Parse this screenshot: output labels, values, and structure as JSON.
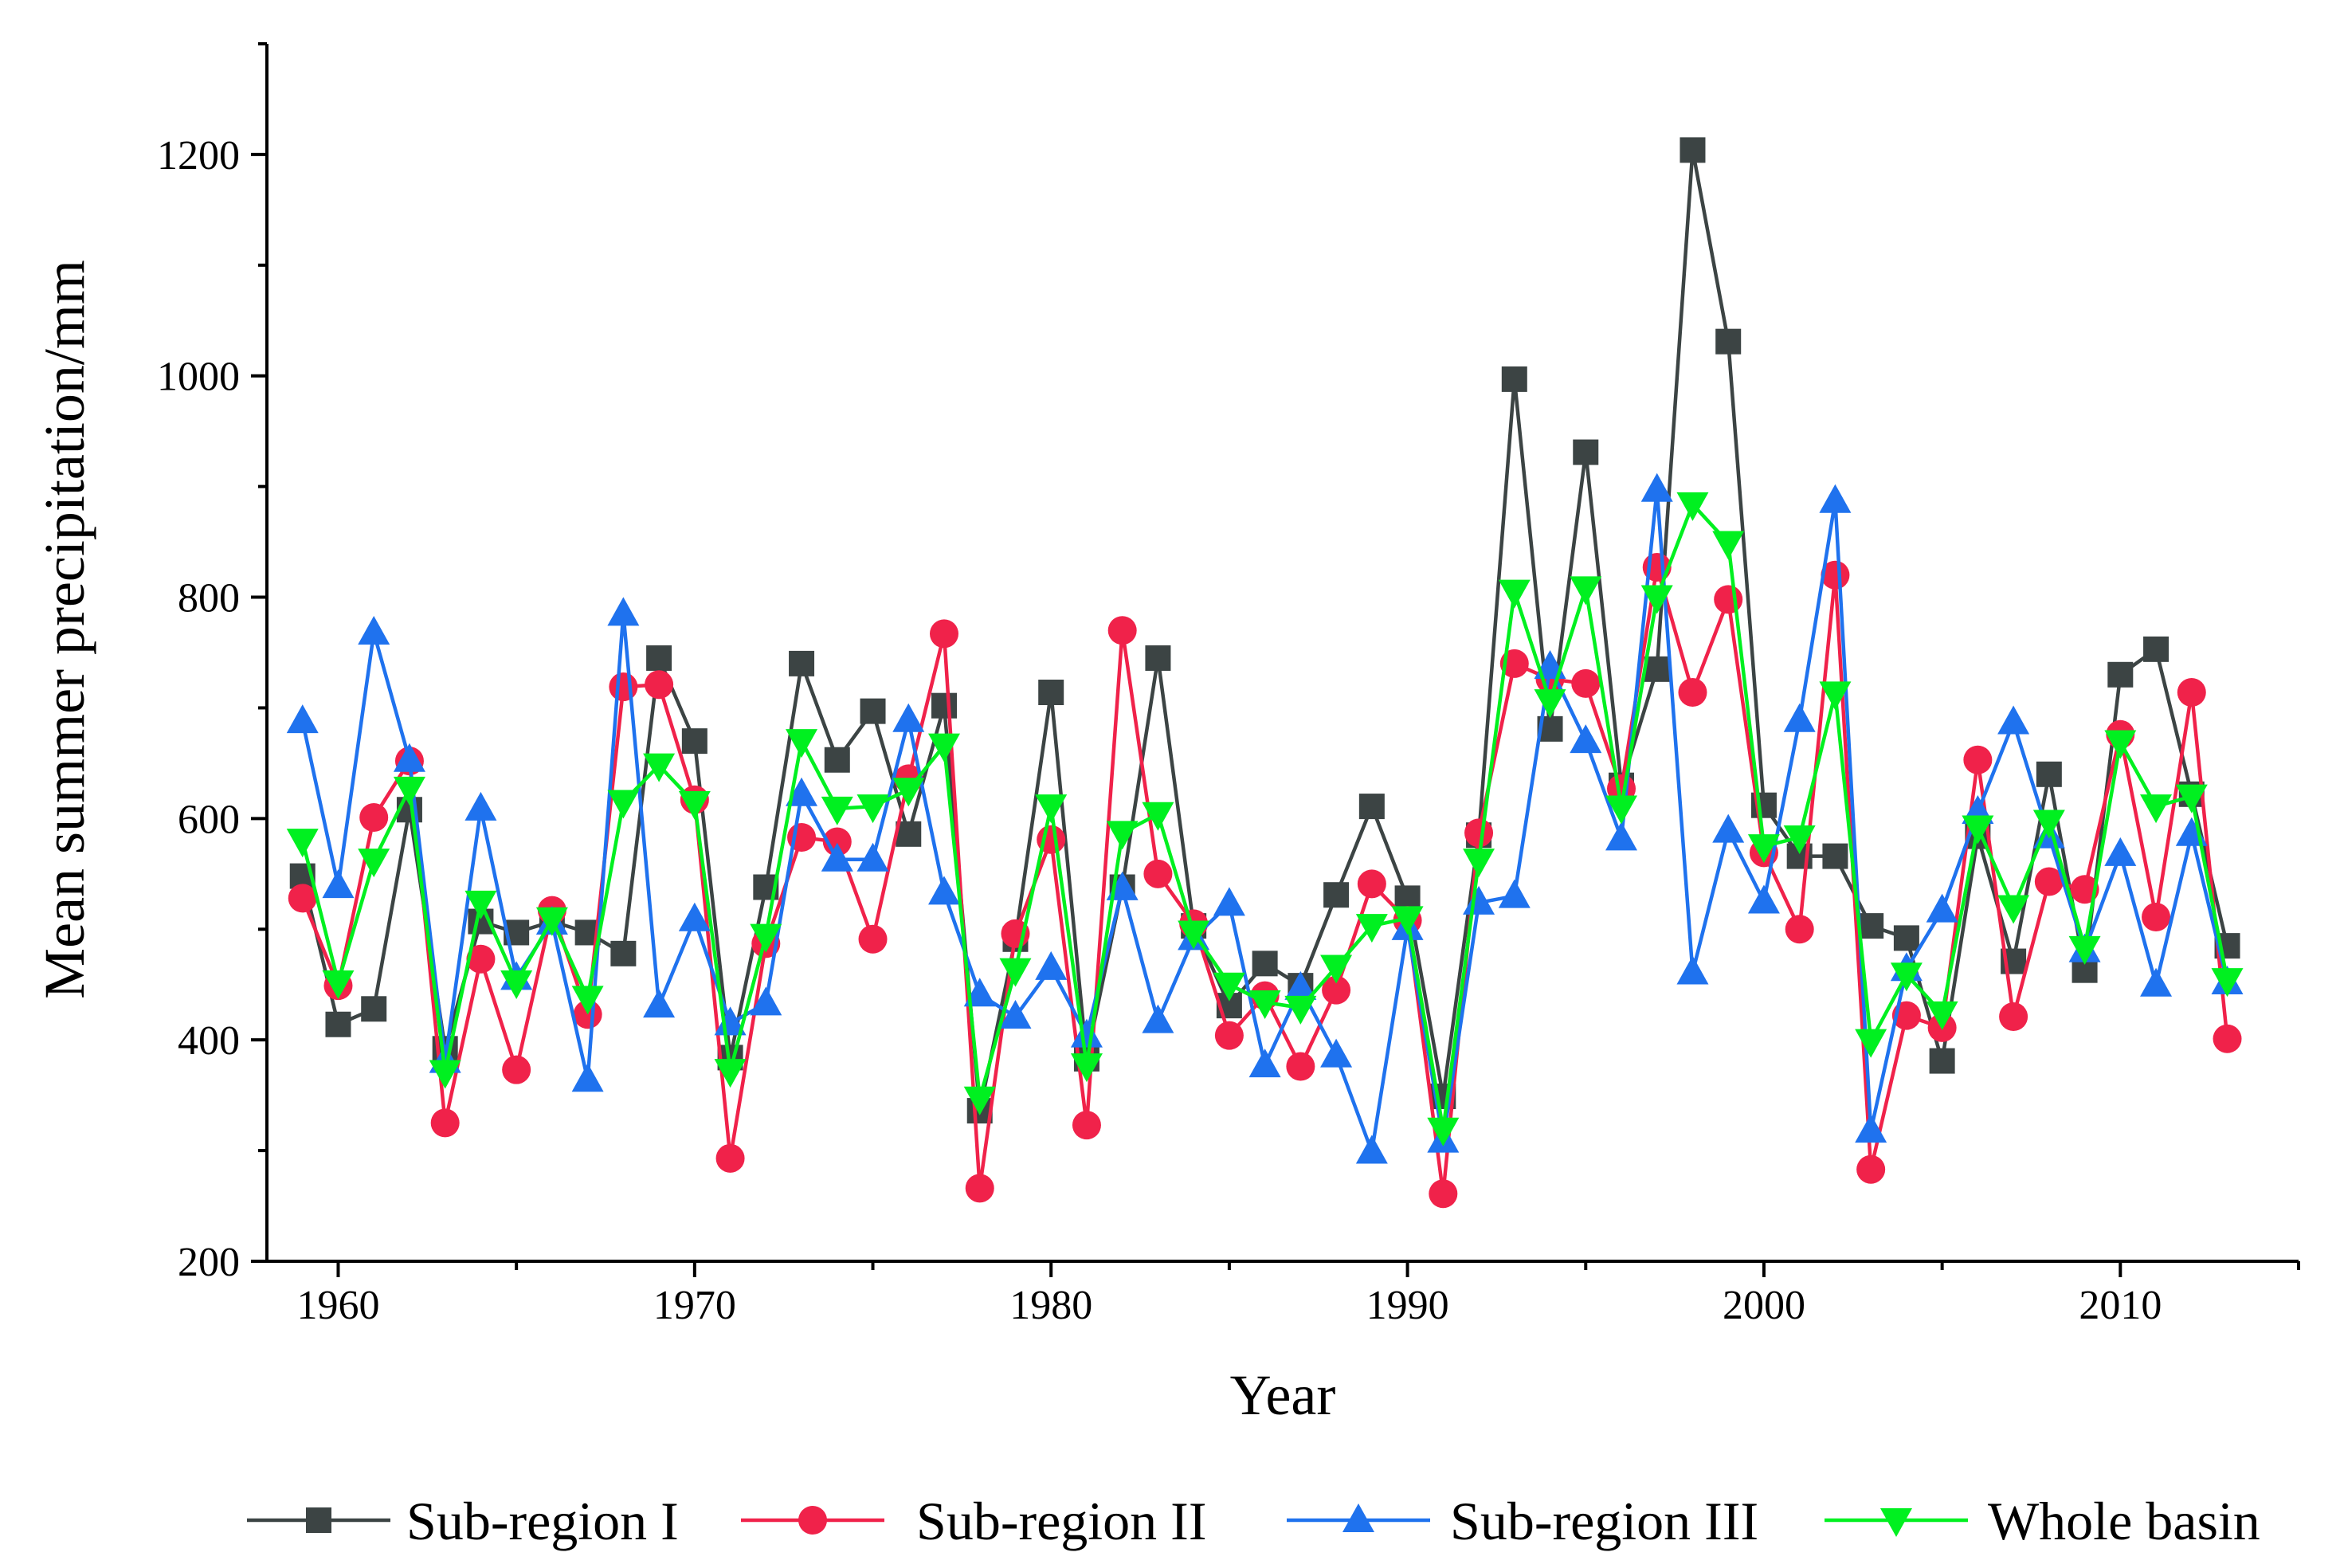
{
  "chart_data": {
    "type": "line",
    "title": "",
    "xlabel": "Year",
    "ylabel": "Mean summer precipitation/mm",
    "xlim": [
      1958,
      2015
    ],
    "ylim": [
      200,
      1300
    ],
    "x_ticks": [
      1960,
      1970,
      1980,
      1990,
      2000,
      2010
    ],
    "y_ticks": [
      200,
      400,
      600,
      800,
      1000,
      1200
    ],
    "grid": false,
    "legend_position": "bottom",
    "x": [
      1959,
      1960,
      1961,
      1962,
      1963,
      1964,
      1965,
      1966,
      1967,
      1968,
      1969,
      1970,
      1971,
      1972,
      1973,
      1974,
      1975,
      1976,
      1977,
      1978,
      1979,
      1980,
      1981,
      1982,
      1983,
      1984,
      1985,
      1986,
      1987,
      1988,
      1989,
      1990,
      1991,
      1992,
      1993,
      1994,
      1995,
      1996,
      1997,
      1998,
      1999,
      2000,
      2001,
      2002,
      2003,
      2004,
      2005,
      2006,
      2007,
      2008,
      2009,
      2010,
      2011,
      2012,
      2013
    ],
    "series": [
      {
        "name": "Sub-region I",
        "color": "#3c4444",
        "marker": "square",
        "values": [
          548,
          414,
          428,
          608,
          392,
          507,
          497,
          507,
          497,
          478,
          745,
          670,
          384,
          538,
          740,
          653,
          697,
          586,
          702,
          336,
          491,
          714,
          383,
          538,
          745,
          503,
          431,
          469,
          449,
          531,
          611,
          528,
          349,
          585,
          997,
          681,
          931,
          630,
          735,
          1204,
          1031,
          612,
          566,
          566,
          503,
          492,
          381,
          584,
          471,
          640,
          463,
          730,
          753,
          622,
          485
        ]
      },
      {
        "name": "Sub-region II",
        "color": "#f0224a",
        "marker": "circle",
        "values": [
          528,
          449,
          601,
          652,
          325,
          473,
          373,
          517,
          423,
          719,
          721,
          617,
          293,
          487,
          583,
          579,
          491,
          636,
          767,
          266,
          496,
          581,
          323,
          770,
          550,
          505,
          404,
          440,
          376,
          445,
          541,
          508,
          261,
          587,
          740,
          726,
          722,
          627,
          827,
          714,
          798,
          569,
          500,
          820,
          283,
          422,
          411,
          653,
          421,
          543,
          536,
          676,
          511,
          714,
          401
        ]
      },
      {
        "name": "Sub-region III",
        "color": "#1f72ee",
        "marker": "triangle-up",
        "values": [
          688,
          539,
          768,
          653,
          381,
          609,
          456,
          506,
          364,
          785,
          431,
          509,
          415,
          433,
          622,
          563,
          563,
          689,
          533,
          441,
          421,
          465,
          404,
          537,
          417,
          492,
          523,
          377,
          447,
          386,
          299,
          501,
          309,
          524,
          530,
          737,
          670,
          582,
          897,
          461,
          589,
          525,
          689,
          887,
          318,
          464,
          517,
          606,
          687,
          584,
          481,
          568,
          450,
          586,
          452
        ]
      },
      {
        "name": "Whole basin",
        "color": "#00f020",
        "marker": "triangle-down",
        "values": [
          580,
          452,
          562,
          627,
          371,
          524,
          452,
          509,
          438,
          615,
          648,
          614,
          372,
          494,
          670,
          609,
          611,
          626,
          666,
          347,
          463,
          611,
          377,
          587,
          604,
          497,
          450,
          434,
          429,
          466,
          503,
          510,
          319,
          562,
          805,
          706,
          808,
          610,
          800,
          884,
          849,
          575,
          583,
          713,
          399,
          459,
          424,
          592,
          520,
          597,
          483,
          669,
          611,
          620,
          454
        ]
      }
    ]
  }
}
